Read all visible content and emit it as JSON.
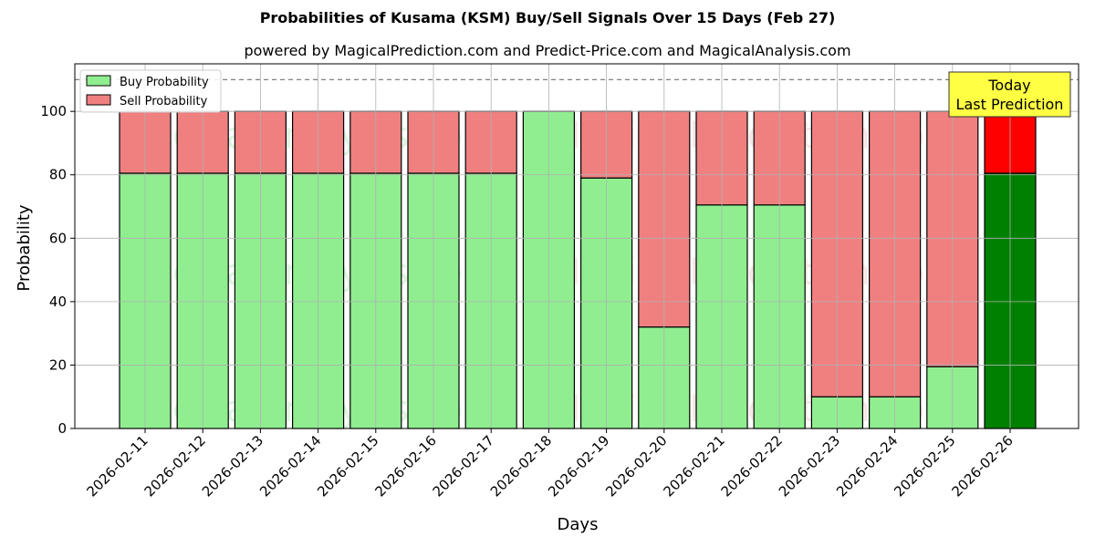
{
  "chart_data": {
    "type": "bar",
    "stacked": true,
    "title": "Probabilities of Kusama (KSM) Buy/Sell Signals Over 15 Days (Feb 27)",
    "subtitle": "powered by MagicalPrediction.com and Predict-Price.com and MagicalAnalysis.com",
    "xlabel": "Days",
    "ylabel": "Probability",
    "ylim": [
      0,
      115
    ],
    "yticks": [
      0,
      20,
      40,
      60,
      80,
      100
    ],
    "reference_line": 110,
    "grid": true,
    "legend_position": "top-left",
    "categories": [
      "2026-02-11",
      "2026-02-12",
      "2026-02-13",
      "2026-02-14",
      "2026-02-15",
      "2026-02-16",
      "2026-02-17",
      "2026-02-18",
      "2026-02-19",
      "2026-02-20",
      "2026-02-21",
      "2026-02-22",
      "2026-02-23",
      "2026-02-24",
      "2026-02-25",
      "2026-02-26"
    ],
    "series": [
      {
        "name": "Buy Probability",
        "color": "#90ee90",
        "highlight_color": "#008000",
        "values": [
          80.5,
          80.5,
          80.5,
          80.5,
          80.5,
          80.5,
          80.5,
          100,
          79,
          32,
          70.5,
          70.5,
          10,
          10,
          19.5,
          80.5
        ]
      },
      {
        "name": "Sell Probability",
        "color": "#f08080",
        "highlight_color": "#ff0000",
        "values": [
          19.5,
          19.5,
          19.5,
          19.5,
          19.5,
          19.5,
          19.5,
          0,
          21,
          68,
          29.5,
          29.5,
          90,
          90,
          80.5,
          19.5
        ]
      }
    ],
    "annotation": {
      "lines": [
        "Today",
        "Last Prediction"
      ],
      "box_color": "#ffff44"
    },
    "watermarks": [
      "MagicalAnalysis.com",
      "MagicalPrediction.com"
    ]
  }
}
